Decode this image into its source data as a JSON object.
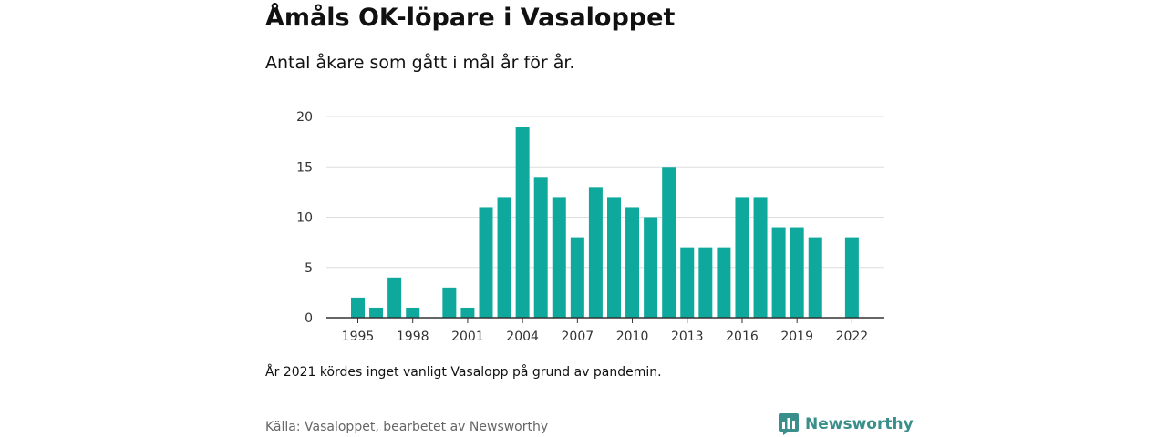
{
  "header": {
    "title": "Åmåls OK-löpare i Vasaloppet",
    "subtitle": "Antal åkare som gått i mål år för år."
  },
  "footer": {
    "note": "År 2021 kördes inget vanligt Vasalopp på grund av pandemin.",
    "source": "Källa: Vasaloppet, bearbetet av Newsworthy",
    "brand": "Newsworthy"
  },
  "colors": {
    "bar": "#0fa89c",
    "grid": "#dddddd",
    "axis": "#333333",
    "brand": "#3a8f8b"
  },
  "icons": {
    "brand_logo": "bar-chart-speech-bubble-icon"
  },
  "chart_data": {
    "type": "bar",
    "categories": [
      1995,
      1996,
      1997,
      1998,
      1999,
      2000,
      2001,
      2002,
      2003,
      2004,
      2005,
      2006,
      2007,
      2008,
      2009,
      2010,
      2011,
      2012,
      2013,
      2014,
      2015,
      2016,
      2017,
      2018,
      2019,
      2020,
      2021,
      2022
    ],
    "values": [
      2,
      1,
      4,
      1,
      0,
      3,
      1,
      11,
      12,
      19,
      14,
      12,
      8,
      13,
      12,
      11,
      10,
      15,
      7,
      7,
      7,
      12,
      12,
      9,
      9,
      8,
      null,
      8
    ],
    "x_tick_labels": [
      "1995",
      "1998",
      "2001",
      "2004",
      "2007",
      "2010",
      "2013",
      "2016",
      "2019",
      "2022"
    ],
    "y_ticks": [
      0,
      5,
      10,
      15,
      20
    ],
    "ylim": [
      0,
      20
    ],
    "grid": true,
    "legend": "none"
  }
}
